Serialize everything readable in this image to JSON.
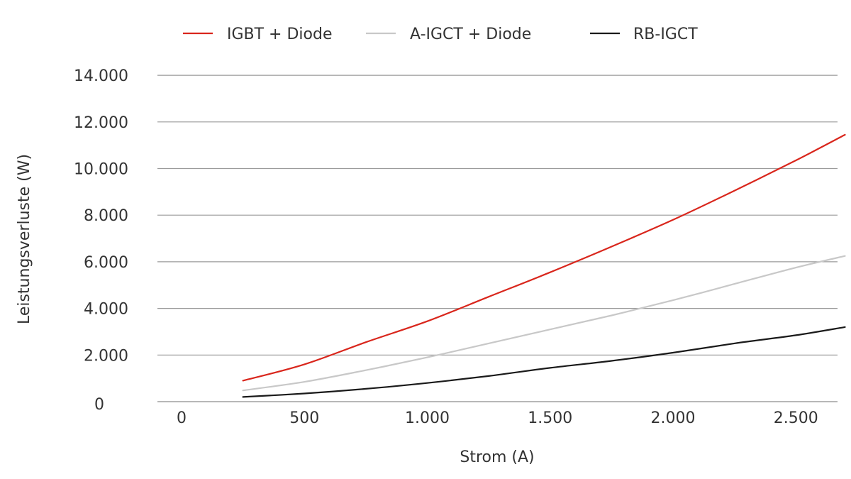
{
  "chart_data": {
    "type": "line",
    "title": "",
    "xlabel": "Strom (A)",
    "ylabel": "Leistungsverluste (W)",
    "xlim": [
      0,
      2700
    ],
    "ylim": [
      0,
      14000
    ],
    "x_ticks": [
      0,
      500,
      1000,
      1500,
      2000,
      2500
    ],
    "x_tick_labels": [
      "0",
      "500",
      "1.000",
      "1.500",
      "2.000",
      "2.500"
    ],
    "y_ticks": [
      0,
      2000,
      4000,
      6000,
      8000,
      10000,
      12000,
      14000
    ],
    "y_tick_labels": [
      "0",
      "2.000",
      "4.000",
      "6.000",
      "8.000",
      "10.000",
      "12.000",
      "14.000"
    ],
    "grid": "horizontal",
    "legend_position": "top",
    "series": [
      {
        "name": "IGBT + Diode",
        "color": "#d9261c",
        "x": [
          250,
          500,
          750,
          1000,
          1250,
          1500,
          1750,
          2000,
          2250,
          2500,
          2700
        ],
        "values": [
          900,
          1600,
          2550,
          3450,
          4500,
          5550,
          6650,
          7800,
          9050,
          10350,
          11450
        ]
      },
      {
        "name": "A-IGCT + Diode",
        "color": "#c8c8c8",
        "x": [
          250,
          500,
          750,
          1000,
          1250,
          1500,
          1750,
          2000,
          2250,
          2500,
          2700
        ],
        "values": [
          480,
          850,
          1350,
          1900,
          2500,
          3100,
          3700,
          4350,
          5050,
          5750,
          6250
        ]
      },
      {
        "name": "RB-IGCT",
        "color": "#1a1a1a",
        "x": [
          250,
          500,
          750,
          1000,
          1250,
          1500,
          1750,
          2000,
          2250,
          2500,
          2700
        ],
        "values": [
          200,
          350,
          550,
          800,
          1100,
          1450,
          1750,
          2100,
          2500,
          2850,
          3200
        ]
      }
    ]
  }
}
